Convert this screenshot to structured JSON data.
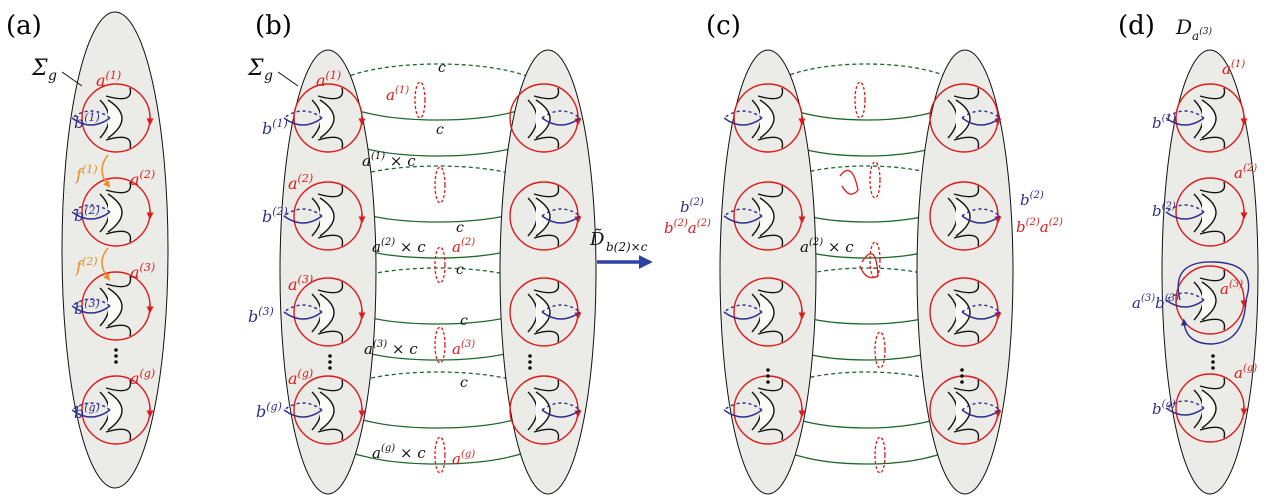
{
  "colors": {
    "a_curve": "#e01b1b",
    "b_curve": "#2e2e8e",
    "f_curve": "#f08c1a",
    "c_curve": "#1a6a2a",
    "surface_fill": "#ebebe7",
    "hole_fill": "#fbfbf8"
  },
  "panels": {
    "a": {
      "label": "(a)",
      "surface": "Σ",
      "surface_sub": "g",
      "b_labels": [
        {
          "base": "b",
          "sup": "(1)"
        },
        {
          "base": "b",
          "sup": "(2)"
        },
        {
          "base": "b",
          "sup": "(3)"
        },
        {
          "base": "b",
          "sup": "(g)"
        }
      ],
      "a_labels": [
        {
          "base": "a",
          "sup": "(1)"
        },
        {
          "base": "a",
          "sup": "(2)"
        },
        {
          "base": "a",
          "sup": "(3)"
        },
        {
          "base": "a",
          "sup": "(g)"
        }
      ],
      "f_labels": [
        {
          "base": "f",
          "sup": "(1)"
        },
        {
          "base": "f",
          "sup": "(2)"
        }
      ]
    },
    "b": {
      "label": "(b)",
      "surface": "Σ",
      "surface_sub": "g",
      "c_label": "c",
      "b_labels": [
        {
          "base": "b",
          "sup": "(1)"
        },
        {
          "base": "b",
          "sup": "(2)"
        },
        {
          "base": "b",
          "sup": "(3)"
        },
        {
          "base": "b",
          "sup": "(g)"
        }
      ],
      "a_labels": [
        {
          "base": "a",
          "sup": "(1)"
        },
        {
          "base": "a",
          "sup": "(2)"
        },
        {
          "base": "a",
          "sup": "(3)"
        },
        {
          "base": "a",
          "sup": "(g)"
        }
      ],
      "products": [
        {
          "base": "a",
          "sup": "(1)",
          "tail": " × c"
        },
        {
          "base": "a",
          "sup": "(2)",
          "tail": " × c"
        },
        {
          "base": "a",
          "sup": "(3)",
          "tail": " × c"
        },
        {
          "base": "a",
          "sup": "(g)",
          "tail": " × c"
        }
      ]
    },
    "arrow": {
      "base": "D̃",
      "sub": "b(2)×c"
    },
    "c": {
      "label": "(c)",
      "b2": {
        "base": "b",
        "sup": "(2)"
      },
      "b2a2": {
        "b": "b",
        "b_sup": "(2)",
        "a": "a",
        "a_sup": "(2)"
      },
      "product": {
        "base": "a",
        "sup": "(2)",
        "tail": " × c"
      }
    },
    "d": {
      "label": "(d)",
      "title_base": "D",
      "title_sub": "a",
      "title_subsup": "(3)",
      "b_labels": [
        {
          "base": "b",
          "sup": "(1)"
        },
        {
          "base": "b",
          "sup": "(2)"
        },
        {
          "base": "b",
          "sup": "(g)"
        }
      ],
      "a_labels": [
        {
          "base": "a",
          "sup": "(1)"
        },
        {
          "base": "a",
          "sup": "(2)"
        },
        {
          "base": "a",
          "sup": "(3)"
        },
        {
          "base": "a",
          "sup": "(g)"
        }
      ],
      "ab_label": {
        "a": "a",
        "a_sup": "(3)",
        "b": "b",
        "b_sup": "(3)"
      }
    }
  }
}
